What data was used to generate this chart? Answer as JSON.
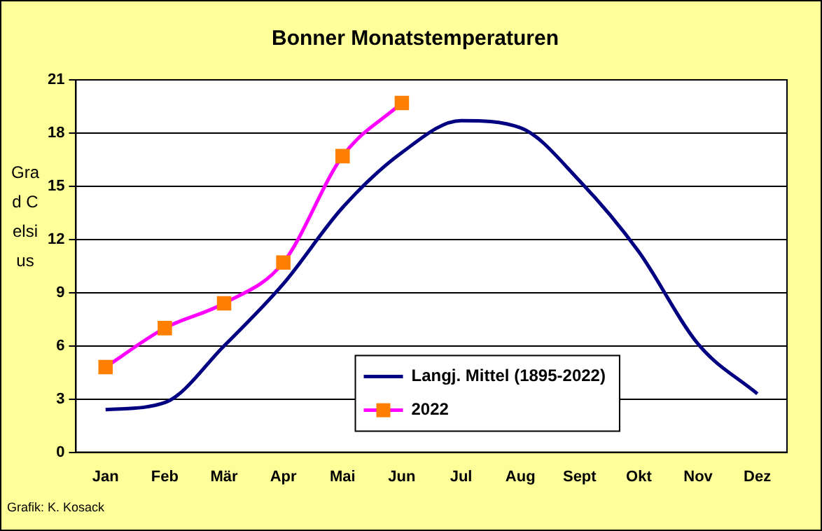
{
  "chart_data": {
    "type": "line",
    "title": "Bonner Monatstemperaturen",
    "ylabel": "Grad Celsius",
    "categories": [
      "Jan",
      "Feb",
      "Mär",
      "Apr",
      "Mai",
      "Jun",
      "Jul",
      "Aug",
      "Sept",
      "Okt",
      "Nov",
      "Dez"
    ],
    "series": [
      {
        "name": "Langj. Mittel (1895-2022)",
        "color": "#000080",
        "marker": "none",
        "values": [
          2.4,
          2.8,
          6.0,
          9.5,
          13.8,
          16.9,
          18.7,
          18.3,
          15.3,
          11.3,
          6.1,
          3.3
        ]
      },
      {
        "name": "2022",
        "color": "#ff00ff",
        "marker": "square",
        "values": [
          4.8,
          7.0,
          8.4,
          10.7,
          16.7,
          19.7,
          null,
          null,
          null,
          null,
          null,
          null
        ]
      }
    ],
    "ylim": [
      0,
      21
    ],
    "yticks": [
      0,
      3,
      6,
      9,
      12,
      15,
      18,
      21
    ],
    "grid": "y",
    "legend": "bottom",
    "annotations": [
      "Grafik: K. Kosack"
    ]
  }
}
